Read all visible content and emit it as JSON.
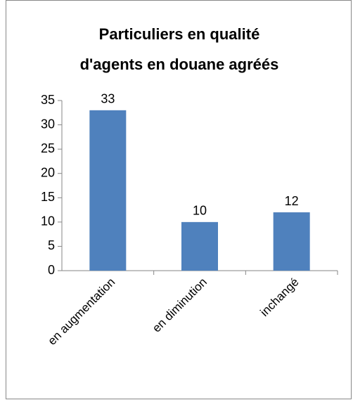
{
  "chart_data": {
    "type": "bar",
    "title": [
      "Particuliers en qualité",
      "d'agents en douane agréés"
    ],
    "categories": [
      "en augmentation",
      "en diminution",
      "inchangé"
    ],
    "values": [
      33,
      10,
      12
    ],
    "color": "#4f81bd",
    "ylim": [
      0,
      35
    ],
    "yticks": [
      0,
      5,
      10,
      15,
      20,
      25,
      30,
      35
    ]
  }
}
